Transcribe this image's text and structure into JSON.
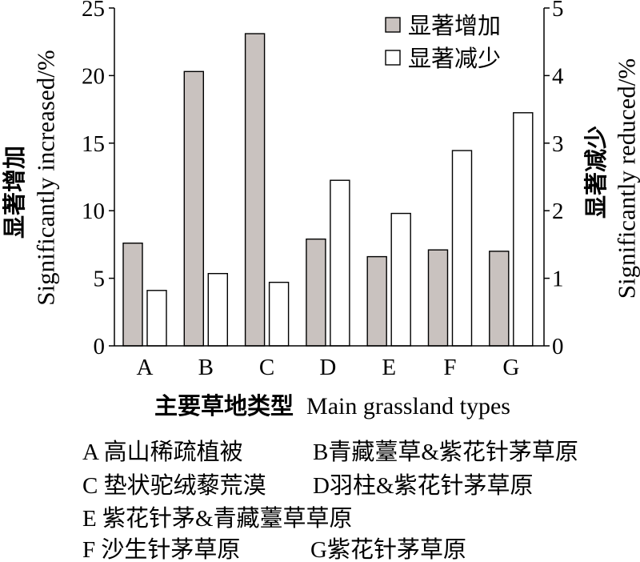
{
  "chart_data": {
    "type": "bar",
    "categories": [
      "A",
      "B",
      "C",
      "D",
      "E",
      "F",
      "G"
    ],
    "series": [
      {
        "name": "显著增加",
        "axis": "left",
        "color": "#c9c2bf",
        "values": [
          7.6,
          20.3,
          23.1,
          7.9,
          6.6,
          7.1,
          7.0
        ]
      },
      {
        "name": "显著减少",
        "axis": "right",
        "color": "#ffffff",
        "values": [
          0.82,
          1.07,
          0.94,
          2.45,
          1.96,
          2.89,
          3.45
        ]
      }
    ],
    "xlabel": {
      "zh": "主要草地类型",
      "en": "Main grassland types"
    },
    "ylabel_left": {
      "zh": "显著增加",
      "en": "Significantly increased/%"
    },
    "ylabel_right": {
      "zh": "显著减少",
      "en": "Significantly reduced/%"
    },
    "ylim_left": [
      0,
      25
    ],
    "yticks_left": [
      0,
      5,
      10,
      15,
      20,
      25
    ],
    "ylim_right": [
      0,
      5
    ],
    "yticks_right": [
      0,
      1,
      2,
      3,
      4,
      5
    ],
    "legend": "top-right",
    "grid": false
  },
  "category_key": [
    "A 高山稀疏植被",
    "B青藏薹草&紫花针茅草原",
    "C 垫状驼绒藜荒漠",
    "D羽柱&紫花针茅草原",
    "E 紫花针茅&青藏薹草草原",
    "F 沙生针茅草原",
    "G紫花针茅草原"
  ]
}
